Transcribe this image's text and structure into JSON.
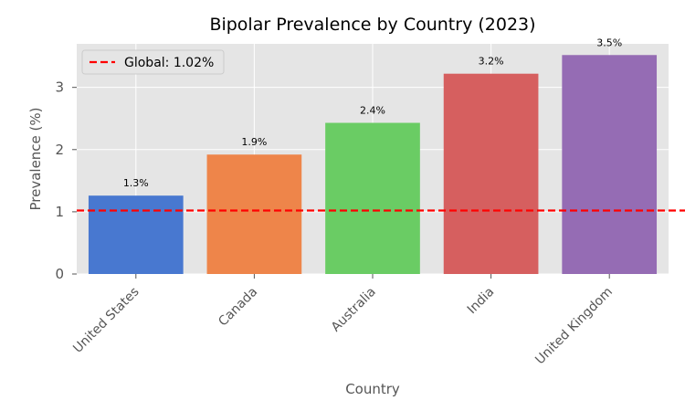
{
  "chart_data": {
    "type": "bar",
    "title": "Bipolar Prevalence by Country (2023)",
    "xlabel": "Country",
    "ylabel": "Prevalence (%)",
    "categories": [
      "United States",
      "Canada",
      "Australia",
      "India",
      "United Kingdom"
    ],
    "values": [
      1.26,
      1.92,
      2.43,
      3.22,
      3.52
    ],
    "data_labels": [
      "1.3%",
      "1.9%",
      "2.4%",
      "3.2%",
      "3.5%"
    ],
    "colors": [
      "#4878d0",
      "#ee854a",
      "#6acc64",
      "#d65f5f",
      "#956cb4"
    ],
    "yticks": [
      0,
      1,
      2,
      3
    ],
    "ylim": [
      0,
      3.7
    ],
    "grid": true,
    "reference_line": {
      "value": 1.02,
      "label": "Global: 1.02%",
      "color": "#ff0000",
      "style": "dashed"
    },
    "legend_placement": "top-left",
    "background": "#e5e5e5"
  }
}
